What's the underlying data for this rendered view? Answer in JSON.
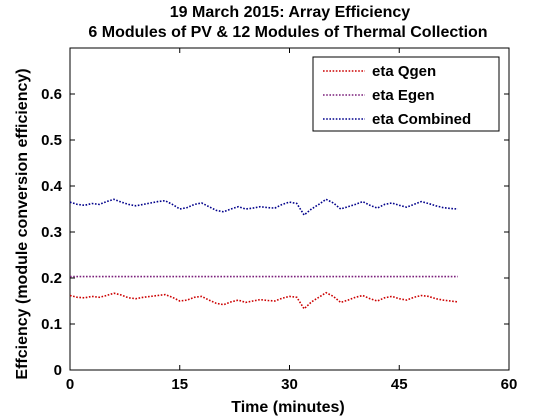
{
  "chart_data": {
    "type": "line",
    "title": "19 March 2015: Array Efficiency",
    "subtitle": "6 Modules of PV & 12 Modules of Thermal Collection",
    "xlabel": "Time (minutes)",
    "ylabel": "Effciency (module conversion efficiency)",
    "xlim": [
      0,
      60
    ],
    "ylim": [
      0,
      0.7
    ],
    "xticks": [
      0,
      15,
      30,
      45,
      60
    ],
    "xtick_labels": [
      "0",
      "15",
      "30",
      "45",
      "60"
    ],
    "yticks": [
      0,
      0.1,
      0.2,
      0.3,
      0.4,
      0.5,
      0.6
    ],
    "ytick_labels": [
      "0",
      "0.1",
      "0.2",
      "0.3",
      "0.4",
      "0.5",
      "0.6"
    ],
    "grid": false,
    "legend_position": "top-right",
    "series": [
      {
        "name": "eta Qgen",
        "color": "#cc0000",
        "style": "dotted",
        "x": [
          0,
          1,
          2,
          3,
          4,
          5,
          6,
          7,
          8,
          9,
          10,
          11,
          12,
          13,
          14,
          15,
          16,
          17,
          18,
          19,
          20,
          21,
          22,
          23,
          24,
          25,
          26,
          27,
          28,
          29,
          30,
          31,
          32,
          33,
          34,
          35,
          36,
          37,
          38,
          39,
          40,
          41,
          42,
          43,
          44,
          45,
          46,
          47,
          48,
          49,
          50,
          51,
          52,
          53
        ],
        "values": [
          0.162,
          0.158,
          0.157,
          0.16,
          0.158,
          0.162,
          0.167,
          0.163,
          0.157,
          0.155,
          0.158,
          0.16,
          0.162,
          0.164,
          0.158,
          0.15,
          0.152,
          0.158,
          0.16,
          0.152,
          0.145,
          0.142,
          0.148,
          0.152,
          0.147,
          0.15,
          0.153,
          0.151,
          0.15,
          0.156,
          0.16,
          0.158,
          0.133,
          0.148,
          0.158,
          0.168,
          0.16,
          0.147,
          0.152,
          0.158,
          0.162,
          0.155,
          0.15,
          0.157,
          0.16,
          0.155,
          0.152,
          0.158,
          0.162,
          0.16,
          0.155,
          0.152,
          0.15,
          0.148
        ]
      },
      {
        "name": "eta Egen",
        "color": "#7a1f7a",
        "style": "dotted",
        "x": [
          0,
          53
        ],
        "values": [
          0.203,
          0.203
        ]
      },
      {
        "name": "eta Combined",
        "color": "#00008b",
        "style": "dotted",
        "x": [
          0,
          1,
          2,
          3,
          4,
          5,
          6,
          7,
          8,
          9,
          10,
          11,
          12,
          13,
          14,
          15,
          16,
          17,
          18,
          19,
          20,
          21,
          22,
          23,
          24,
          25,
          26,
          27,
          28,
          29,
          30,
          31,
          32,
          33,
          34,
          35,
          36,
          37,
          38,
          39,
          40,
          41,
          42,
          43,
          44,
          45,
          46,
          47,
          48,
          49,
          50,
          51,
          52,
          53
        ],
        "values": [
          0.365,
          0.36,
          0.358,
          0.362,
          0.36,
          0.366,
          0.371,
          0.365,
          0.36,
          0.357,
          0.36,
          0.363,
          0.366,
          0.368,
          0.36,
          0.35,
          0.353,
          0.36,
          0.363,
          0.355,
          0.347,
          0.344,
          0.35,
          0.355,
          0.35,
          0.352,
          0.355,
          0.353,
          0.352,
          0.36,
          0.365,
          0.362,
          0.337,
          0.35,
          0.36,
          0.371,
          0.363,
          0.35,
          0.355,
          0.36,
          0.366,
          0.358,
          0.352,
          0.36,
          0.363,
          0.358,
          0.354,
          0.36,
          0.366,
          0.362,
          0.357,
          0.353,
          0.351,
          0.35
        ]
      }
    ]
  }
}
